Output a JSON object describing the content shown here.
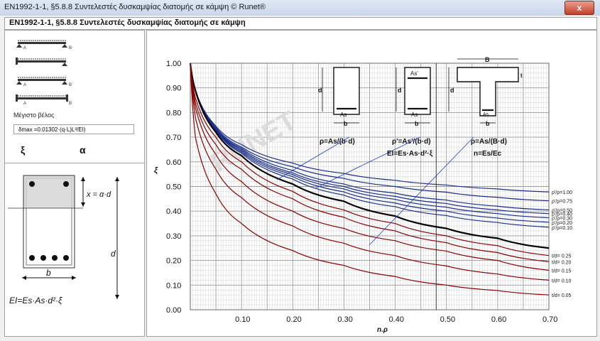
{
  "window": {
    "title": "EN1992-1-1, §5.8.8  Συντελεστές δυσκαμψίας διατομής σε κάμψη © Runet®",
    "close": "x"
  },
  "header": {
    "text": "EN1992-1-1, §5.8.8  Συντελεστές δυσκαμψίας διατομής σε κάμψη"
  },
  "left": {
    "beam_labels": {
      "a": "A",
      "b": "B"
    },
    "max_deflection_label": "Μέγιστο βέλος",
    "deflection_formula": "δmax =0.01302·(q·L)L³/EI)",
    "xi_label": "ξ",
    "alpha_label": "α",
    "section": {
      "x_label": "x = α·d",
      "d_label": "d",
      "b_label": "b",
      "ei_formula": "EI=Es·As·d²·ξ"
    }
  },
  "chart_data": {
    "type": "line",
    "xlabel": "n.ρ",
    "ylabel": "ξ",
    "xlim": [
      0,
      0.7
    ],
    "ylim": [
      0,
      1.0
    ],
    "x_ticks": [
      "0.10",
      "0.20",
      "0.30",
      "0.40",
      "0.50",
      "0.60",
      "0.70"
    ],
    "y_ticks": [
      "0.00",
      "0.10",
      "0.20",
      "0.30",
      "0.40",
      "0.50",
      "0.60",
      "0.70",
      "0.80",
      "0.90",
      "1.00"
    ],
    "marker_x": 0.48,
    "series": [
      {
        "name": "ρ'/ρ=1.00",
        "group": "blue",
        "values": [
          [
            0.01,
            0.89
          ],
          [
            0.05,
            0.745
          ],
          [
            0.1,
            0.67
          ],
          [
            0.2,
            0.595
          ],
          [
            0.3,
            0.553
          ],
          [
            0.4,
            0.525
          ],
          [
            0.5,
            0.506
          ],
          [
            0.6,
            0.49
          ],
          [
            0.7,
            0.478
          ]
        ]
      },
      {
        "name": "ρ'/ρ=0.75",
        "group": "blue",
        "values": [
          [
            0.01,
            0.89
          ],
          [
            0.05,
            0.74
          ],
          [
            0.1,
            0.66
          ],
          [
            0.2,
            0.58
          ],
          [
            0.3,
            0.533
          ],
          [
            0.4,
            0.5
          ],
          [
            0.5,
            0.477
          ],
          [
            0.6,
            0.456
          ],
          [
            0.7,
            0.442
          ]
        ]
      },
      {
        "name": "ρ'/ρ=0.50",
        "group": "blue",
        "values": [
          [
            0.01,
            0.89
          ],
          [
            0.05,
            0.735
          ],
          [
            0.1,
            0.655
          ],
          [
            0.2,
            0.565
          ],
          [
            0.3,
            0.51
          ],
          [
            0.4,
            0.473
          ],
          [
            0.5,
            0.445
          ],
          [
            0.6,
            0.42
          ],
          [
            0.7,
            0.405
          ]
        ]
      },
      {
        "name": "ρ'/ρ=0.40",
        "group": "blue",
        "values": [
          [
            0.01,
            0.89
          ],
          [
            0.05,
            0.733
          ],
          [
            0.1,
            0.65
          ],
          [
            0.2,
            0.555
          ],
          [
            0.3,
            0.5
          ],
          [
            0.4,
            0.46
          ],
          [
            0.5,
            0.431
          ],
          [
            0.6,
            0.405
          ],
          [
            0.7,
            0.39
          ]
        ]
      },
      {
        "name": "ρ'/ρ=0.30",
        "group": "blue",
        "values": [
          [
            0.01,
            0.89
          ],
          [
            0.05,
            0.731
          ],
          [
            0.1,
            0.645
          ],
          [
            0.2,
            0.548
          ],
          [
            0.3,
            0.49
          ],
          [
            0.4,
            0.448
          ],
          [
            0.5,
            0.416
          ],
          [
            0.6,
            0.39
          ],
          [
            0.7,
            0.373
          ]
        ]
      },
      {
        "name": "ρ'/ρ=0.20",
        "group": "blue",
        "values": [
          [
            0.01,
            0.89
          ],
          [
            0.05,
            0.729
          ],
          [
            0.1,
            0.64
          ],
          [
            0.2,
            0.54
          ],
          [
            0.3,
            0.478
          ],
          [
            0.4,
            0.433
          ],
          [
            0.5,
            0.4
          ],
          [
            0.6,
            0.372
          ],
          [
            0.7,
            0.355
          ]
        ]
      },
      {
        "name": "ρ'/ρ=0.10",
        "group": "blue",
        "values": [
          [
            0.01,
            0.89
          ],
          [
            0.05,
            0.727
          ],
          [
            0.1,
            0.635
          ],
          [
            0.2,
            0.53
          ],
          [
            0.3,
            0.465
          ],
          [
            0.4,
            0.418
          ],
          [
            0.5,
            0.382
          ],
          [
            0.6,
            0.354
          ],
          [
            0.7,
            0.335
          ]
        ]
      },
      {
        "name": "",
        "group": "black",
        "values": [
          [
            0.01,
            0.89
          ],
          [
            0.05,
            0.72
          ],
          [
            0.1,
            0.625
          ],
          [
            0.2,
            0.51
          ],
          [
            0.3,
            0.44
          ],
          [
            0.4,
            0.38
          ],
          [
            0.5,
            0.33
          ],
          [
            0.6,
            0.29
          ],
          [
            0.7,
            0.25
          ]
        ]
      },
      {
        "name": "t/d= 0.25",
        "group": "red",
        "values": [
          [
            0.01,
            0.86
          ],
          [
            0.05,
            0.7
          ],
          [
            0.1,
            0.6
          ],
          [
            0.2,
            0.48
          ],
          [
            0.3,
            0.405
          ],
          [
            0.4,
            0.35
          ],
          [
            0.5,
            0.3
          ],
          [
            0.6,
            0.26
          ],
          [
            0.7,
            0.22
          ]
        ]
      },
      {
        "name": "t/d= 0.20",
        "group": "red",
        "values": [
          [
            0.01,
            0.84
          ],
          [
            0.05,
            0.67
          ],
          [
            0.1,
            0.57
          ],
          [
            0.2,
            0.45
          ],
          [
            0.3,
            0.375
          ],
          [
            0.4,
            0.32
          ],
          [
            0.5,
            0.272
          ],
          [
            0.6,
            0.232
          ],
          [
            0.7,
            0.195
          ]
        ]
      },
      {
        "name": "t/d= 0.15",
        "group": "red",
        "values": [
          [
            0.01,
            0.82
          ],
          [
            0.05,
            0.63
          ],
          [
            0.1,
            0.52
          ],
          [
            0.2,
            0.4
          ],
          [
            0.3,
            0.33
          ],
          [
            0.4,
            0.28
          ],
          [
            0.5,
            0.238
          ],
          [
            0.6,
            0.2
          ],
          [
            0.7,
            0.16
          ]
        ]
      },
      {
        "name": "t/d= 0.10",
        "group": "red",
        "values": [
          [
            0.01,
            0.78
          ],
          [
            0.05,
            0.57
          ],
          [
            0.1,
            0.455
          ],
          [
            0.2,
            0.34
          ],
          [
            0.3,
            0.27
          ],
          [
            0.4,
            0.22
          ],
          [
            0.5,
            0.178
          ],
          [
            0.6,
            0.145
          ],
          [
            0.7,
            0.12
          ]
        ]
      },
      {
        "name": "t/d= 0.05",
        "group": "red",
        "values": [
          [
            0.01,
            0.7
          ],
          [
            0.05,
            0.47
          ],
          [
            0.1,
            0.35
          ],
          [
            0.2,
            0.24
          ],
          [
            0.3,
            0.18
          ],
          [
            0.4,
            0.135
          ],
          [
            0.5,
            0.1
          ],
          [
            0.6,
            0.078
          ],
          [
            0.7,
            0.06
          ]
        ]
      }
    ]
  },
  "inset": {
    "rect": {
      "d": "d",
      "b": "b",
      "as": "As",
      "formula": "ρ=As/(b·d)"
    },
    "doubly": {
      "d": "d",
      "b": "b",
      "as": "As",
      "as2": "As'",
      "formula": "ρ'=As'/(b·d)"
    },
    "tee": {
      "B": "B",
      "t": "t",
      "d": "d",
      "b": "b",
      "as": "As",
      "formula": "ρ=As/(B·d)"
    },
    "ei_formula": "EI=Es·As·d²·ξ",
    "n_formula": "n=Es/Ec"
  },
  "watermark": "RUNET",
  "colors": {
    "blue": "#1a2f8a",
    "red": "#8b0000",
    "black": "#000000",
    "grid": "#c8c8c8"
  }
}
